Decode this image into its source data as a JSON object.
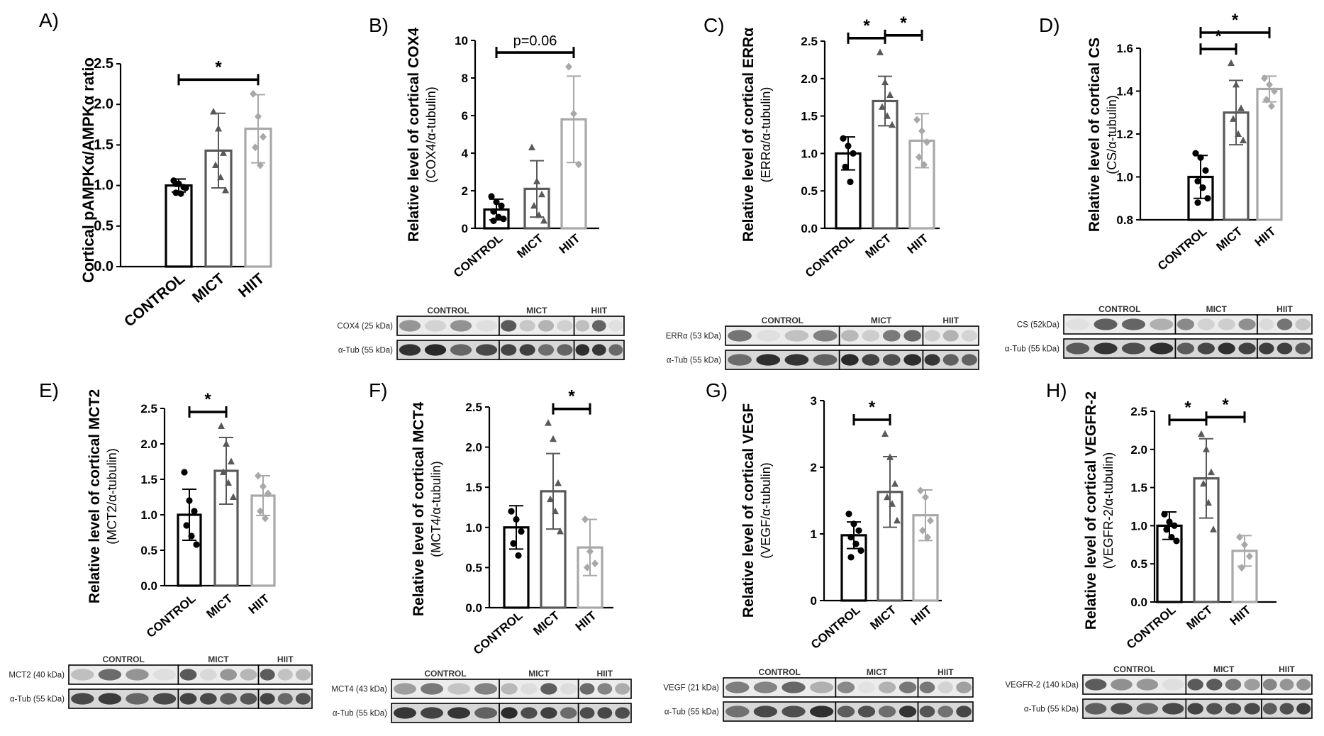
{
  "colors": {
    "CONTROL": "#000000",
    "MICT": "#595959",
    "HIIT": "#a8a8a8"
  },
  "chart_data": [
    {
      "id": "A",
      "type": "bar",
      "panel_label": "A)",
      "ylabel": "Cortical pAMPKα/AMPKα ratio",
      "ylabel_sub": "",
      "categories": [
        "CONTROL",
        "MICT",
        "HIIT"
      ],
      "values": [
        1.0,
        1.43,
        1.7
      ],
      "errors": [
        0.08,
        0.46,
        0.42
      ],
      "ylim": [
        0,
        2.5
      ],
      "yticks": [
        "0.0",
        "0.5",
        "1.0",
        "1.5",
        "2.0",
        "2.5"
      ],
      "points": [
        [
          1.06,
          1.02,
          0.98,
          0.91,
          0.9,
          0.97,
          1.02
        ],
        [
          1.91,
          1.7,
          1.4,
          1.25,
          1.1,
          0.94
        ],
        [
          2.13,
          1.85,
          1.6,
          1.47,
          1.25
        ]
      ],
      "significance": [
        {
          "from": 0,
          "to": 2,
          "label": "*"
        }
      ],
      "blot": null
    },
    {
      "id": "B",
      "type": "bar",
      "panel_label": "B)",
      "ylabel": "Relative level of cortical COX4",
      "ylabel_sub": "(COX4/α-tubulin)",
      "categories": [
        "CONTROL",
        "MICT",
        "HIIT"
      ],
      "values": [
        1.0,
        2.1,
        5.8
      ],
      "errors": [
        0.55,
        1.5,
        2.3
      ],
      "ylim": [
        0,
        10
      ],
      "yticks": [
        "0",
        "2",
        "4",
        "6",
        "8",
        "10"
      ],
      "points": [
        [
          1.7,
          1.4,
          1.2,
          0.9,
          0.6,
          0.5,
          0.4
        ],
        [
          4.3,
          2.5,
          1.8,
          1.2,
          0.7,
          0.4
        ],
        [
          8.6,
          6.1,
          3.4
        ]
      ],
      "significance": [
        {
          "from": 0,
          "to": 2,
          "label": "p=0.06"
        }
      ],
      "blot": {
        "groups": [
          "CONTROL",
          "MICT",
          "HIIT"
        ],
        "rows": [
          "COX4 (25 kDa)",
          "α-Tub (55 kDa)"
        ]
      }
    },
    {
      "id": "C",
      "type": "bar",
      "panel_label": "C)",
      "ylabel": "Relative level of cortical ERRα",
      "ylabel_sub": "(ERRα/α-tubulin)",
      "categories": [
        "CONTROL",
        "MICT",
        "HIIT"
      ],
      "values": [
        1.0,
        1.7,
        1.17
      ],
      "errors": [
        0.22,
        0.33,
        0.36
      ],
      "ylim": [
        0,
        2.5
      ],
      "yticks": [
        "0.0",
        "0.5",
        "1.0",
        "1.5",
        "2.0",
        "2.5"
      ],
      "points": [
        [
          1.2,
          1.1,
          1.0,
          0.82,
          0.62
        ],
        [
          2.35,
          1.95,
          1.78,
          1.62,
          1.5,
          1.38
        ],
        [
          1.45,
          1.3,
          1.15,
          0.95,
          0.85
        ]
      ],
      "significance": [
        {
          "from": 0,
          "to": 1,
          "label": "*"
        },
        {
          "from": 1,
          "to": 2,
          "label": "*"
        }
      ],
      "blot": {
        "groups": [
          "CONTROL",
          "MICT",
          "HIIT"
        ],
        "rows": [
          "ERRα (53 kDa)",
          "α-Tub (55 kDa)"
        ]
      }
    },
    {
      "id": "D",
      "type": "bar",
      "panel_label": "D)",
      "ylabel": "Relative level of cortical CS",
      "ylabel_sub": "(CS/α-tubulin)",
      "categories": [
        "CONTROL",
        "MICT",
        "HIIT"
      ],
      "values": [
        1.0,
        1.3,
        1.41
      ],
      "errors": [
        0.1,
        0.15,
        0.06
      ],
      "ylim": [
        0.8,
        1.6
      ],
      "yticks": [
        "0.8",
        "1.0",
        "1.2",
        "1.4",
        "1.6"
      ],
      "points": [
        [
          1.11,
          1.09,
          1.03,
          0.98,
          0.95,
          0.9,
          0.88
        ],
        [
          1.53,
          1.43,
          1.32,
          1.27,
          1.2,
          1.17
        ],
        [
          1.46,
          1.43,
          1.4,
          1.36,
          1.33
        ]
      ],
      "significance": [
        {
          "from": 0,
          "to": 1,
          "label": "*"
        },
        {
          "from": 0,
          "to": 2,
          "label": "*"
        }
      ],
      "blot": {
        "groups": [
          "CONTROL",
          "MICT",
          "HIIT"
        ],
        "rows": [
          "CS (52kDa)",
          "α-Tub (55 kDa)"
        ]
      }
    },
    {
      "id": "E",
      "type": "bar",
      "panel_label": "E)",
      "ylabel": "Relative level of cortical MCT2",
      "ylabel_sub": "(MCT2/α-tubulin)",
      "categories": [
        "CONTROL",
        "MICT",
        "HIIT"
      ],
      "values": [
        1.0,
        1.62,
        1.27
      ],
      "errors": [
        0.36,
        0.47,
        0.28
      ],
      "ylim": [
        0,
        2.5
      ],
      "yticks": [
        "0.0",
        "0.5",
        "1.0",
        "1.5",
        "2.0",
        "2.5"
      ],
      "points": [
        [
          1.6,
          1.2,
          1.05,
          0.85,
          0.7,
          0.58
        ],
        [
          2.25,
          2.0,
          1.75,
          1.6,
          1.45,
          1.25
        ],
        [
          1.55,
          1.4,
          1.3,
          1.05,
          0.95
        ]
      ],
      "significance": [
        {
          "from": 0,
          "to": 1,
          "label": "*"
        }
      ],
      "blot": {
        "groups": [
          "CONTROL",
          "MICT",
          "HIIT"
        ],
        "rows": [
          "MCT2 (40 kDa)",
          "α-Tub (55 kDa)"
        ]
      }
    },
    {
      "id": "F",
      "type": "bar",
      "panel_label": "F)",
      "ylabel": "Relative level of cortical MCT4",
      "ylabel_sub": "(MCT4/α-tubulin)",
      "categories": [
        "CONTROL",
        "MICT",
        "HIIT"
      ],
      "values": [
        1.0,
        1.45,
        0.75
      ],
      "errors": [
        0.27,
        0.47,
        0.35
      ],
      "ylim": [
        0,
        2.5
      ],
      "yticks": [
        "0.0",
        "0.5",
        "1.0",
        "1.5",
        "2.0",
        "2.5"
      ],
      "points": [
        [
          1.2,
          1.1,
          0.95,
          0.8,
          0.65
        ],
        [
          2.3,
          2.1,
          1.55,
          1.35,
          1.2,
          0.95
        ],
        [
          1.1,
          0.7,
          0.55,
          0.5
        ]
      ],
      "significance": [
        {
          "from": 1,
          "to": 2,
          "label": "*"
        }
      ],
      "blot": {
        "groups": [
          "CONTROL",
          "MICT",
          "HIIT"
        ],
        "rows": [
          "MCT4 (43 kDa)",
          "α-Tub (55 kDa)"
        ]
      }
    },
    {
      "id": "G",
      "type": "bar",
      "panel_label": "G)",
      "ylabel": "Relative level of cortical VEGF",
      "ylabel_sub": "(VEGF/α-tubulin)",
      "categories": [
        "CONTROL",
        "MICT",
        "HIIT"
      ],
      "values": [
        0.98,
        1.63,
        1.28
      ],
      "errors": [
        0.2,
        0.53,
        0.38
      ],
      "ylim": [
        0,
        3
      ],
      "yticks": [
        "0",
        "1",
        "2",
        "3"
      ],
      "points": [
        [
          1.3,
          1.15,
          1.05,
          0.95,
          0.85,
          0.75,
          0.65
        ],
        [
          2.5,
          2.15,
          1.75,
          1.55,
          1.45,
          1.2
        ],
        [
          1.65,
          1.55,
          1.2,
          1.05,
          0.95
        ]
      ],
      "significance": [
        {
          "from": 0,
          "to": 1,
          "label": "*"
        }
      ],
      "blot": {
        "groups": [
          "CONTROL",
          "MICT",
          "HIIT"
        ],
        "rows": [
          "VEGF (21 kDa)",
          "α-Tub (55 kDa)"
        ]
      }
    },
    {
      "id": "H",
      "type": "bar",
      "panel_label": "H)",
      "ylabel": "Relative level of cortical VEGFR-2",
      "ylabel_sub": "(VEGFR-2/α-tubulin)",
      "categories": [
        "CONTROL",
        "MICT",
        "HIIT"
      ],
      "values": [
        1.0,
        1.62,
        0.67
      ],
      "errors": [
        0.18,
        0.52,
        0.2
      ],
      "ylim": [
        0,
        2.5
      ],
      "yticks": [
        "0.0",
        "0.5",
        "1.0",
        "1.5",
        "2.0",
        "2.5"
      ],
      "points": [
        [
          1.15,
          1.05,
          1.0,
          0.95,
          0.85,
          0.8
        ],
        [
          2.2,
          2.0,
          1.7,
          1.55,
          1.3,
          0.95
        ],
        [
          0.85,
          0.75,
          0.6,
          0.45
        ]
      ],
      "significance": [
        {
          "from": 0,
          "to": 1,
          "label": "*"
        },
        {
          "from": 1,
          "to": 2,
          "label": "*"
        }
      ],
      "blot": {
        "groups": [
          "CONTROL",
          "MICT",
          "HIIT"
        ],
        "rows": [
          "VEGFR-2 (140 kDa)",
          "α-Tub (55 kDa)"
        ]
      }
    }
  ]
}
